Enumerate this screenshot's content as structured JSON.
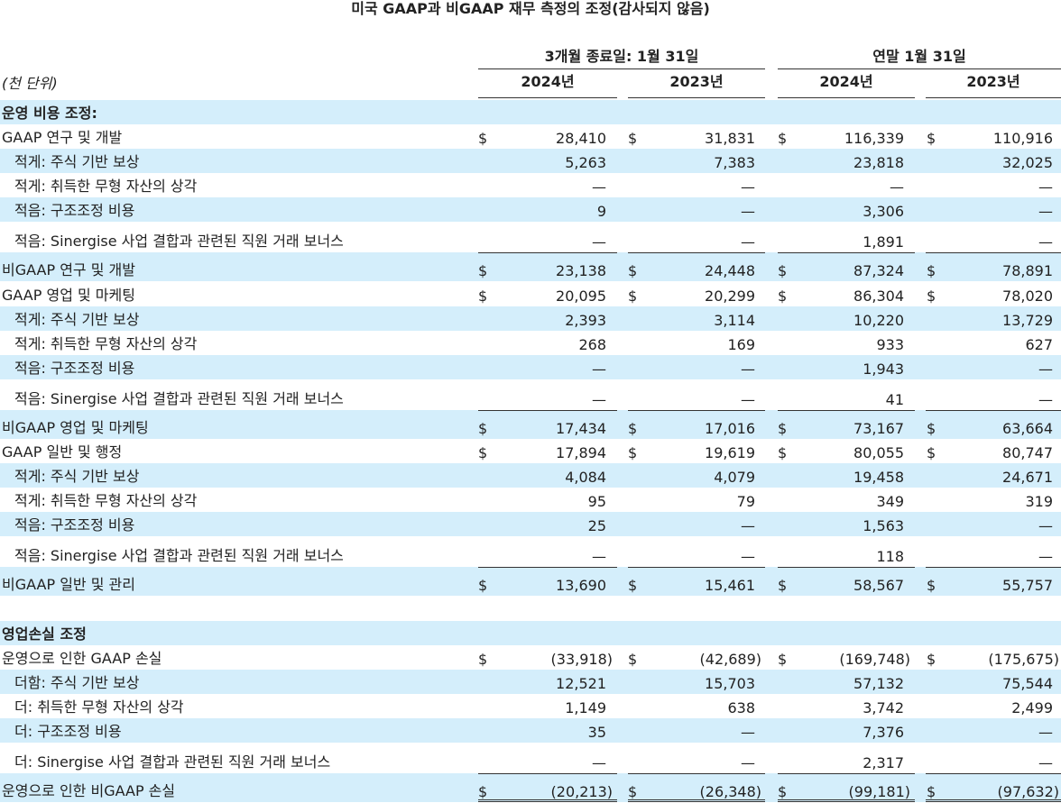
{
  "title": "미국 GAAP과 비GAAP 재무 측정의 조정(감사되지 않음)",
  "units": "(천 단위)",
  "headers": {
    "group1": "3개월 종료일: 1월 31일",
    "group2": "연말 1월 31일",
    "years": [
      "2024년",
      "2023년",
      "2024년",
      "2023년"
    ]
  },
  "rows": [
    {
      "label": "운영 비용 조정:",
      "values": [
        "",
        "",
        "",
        ""
      ],
      "dollar": false,
      "bold": true
    },
    {
      "label": "GAAP 연구 및 개발",
      "values": [
        "28,410",
        "31,831",
        "116,339",
        "110,916"
      ],
      "dollar": true
    },
    {
      "label": "적게: 주식 기반 보상",
      "values": [
        "5,263",
        "7,383",
        "23,818",
        "32,025"
      ],
      "indent": true
    },
    {
      "label": "적게: 취득한 무형 자산의 상각",
      "values": [
        "—",
        "—",
        "—",
        "—"
      ],
      "indent": true
    },
    {
      "label": "적음: 구조조정 비용",
      "values": [
        "9",
        "—",
        "3,306",
        "—"
      ],
      "indent": true
    },
    {
      "label": "적음: Sinergise 사업 결합과 관련된 직원 거래 보너스",
      "values": [
        "—",
        "—",
        "1,891",
        "—"
      ],
      "indent": true
    },
    {
      "label": "비GAAP 연구 및 개발",
      "values": [
        "23,138",
        "24,448",
        "87,324",
        "78,891"
      ],
      "dollar": true,
      "subtotal": true
    },
    {
      "label": "GAAP 영업 및 마케팅",
      "values": [
        "20,095",
        "20,299",
        "86,304",
        "78,020"
      ],
      "dollar": true
    },
    {
      "label": "적게: 주식 기반 보상",
      "values": [
        "2,393",
        "3,114",
        "10,220",
        "13,729"
      ],
      "indent": true
    },
    {
      "label": "적게: 취득한 무형 자산의 상각",
      "values": [
        "268",
        "169",
        "933",
        "627"
      ],
      "indent": true
    },
    {
      "label": "적음: 구조조정 비용",
      "values": [
        "—",
        "—",
        "1,943",
        "—"
      ],
      "indent": true
    },
    {
      "label": "적음: Sinergise 사업 결합과 관련된 직원 거래 보너스",
      "values": [
        "—",
        "—",
        "41",
        "—"
      ],
      "indent": true
    },
    {
      "label": "비GAAP 영업 및 마케팅",
      "values": [
        "17,434",
        "17,016",
        "73,167",
        "63,664"
      ],
      "dollar": true,
      "subtotal": true
    },
    {
      "label": "GAAP 일반 및 행정",
      "values": [
        "17,894",
        "19,619",
        "80,055",
        "80,747"
      ],
      "dollar": true
    },
    {
      "label": "적게: 주식 기반 보상",
      "values": [
        "4,084",
        "4,079",
        "19,458",
        "24,671"
      ],
      "indent": true
    },
    {
      "label": "적게: 취득한 무형 자산의 상각",
      "values": [
        "95",
        "79",
        "349",
        "319"
      ],
      "indent": true
    },
    {
      "label": "적음: 구조조정 비용",
      "values": [
        "25",
        "—",
        "1,563",
        "—"
      ],
      "indent": true
    },
    {
      "label": "적음: Sinergise 사업 결합과 관련된 직원 거래 보너스",
      "values": [
        "—",
        "—",
        "118",
        "—"
      ],
      "indent": true
    },
    {
      "label": "비GAAP 일반 및 관리",
      "values": [
        "13,690",
        "15,461",
        "58,567",
        "55,757"
      ],
      "dollar": true,
      "subtotal": true
    },
    {
      "label": "",
      "values": [
        "",
        "",
        "",
        ""
      ],
      "spacer": true
    },
    {
      "label": "영업손실 조정",
      "values": [
        "",
        "",
        "",
        ""
      ],
      "bold": true
    },
    {
      "label": "운영으로 인한 GAAP 손실",
      "values": [
        "(33,918)",
        "(42,689)",
        "(169,748)",
        "(175,675)"
      ],
      "dollar": true
    },
    {
      "label": "더함: 주식 기반 보상",
      "values": [
        "12,521",
        "15,703",
        "57,132",
        "75,544"
      ],
      "indent": true
    },
    {
      "label": "더: 취득한 무형 자산의 상각",
      "values": [
        "1,149",
        "638",
        "3,742",
        "2,499"
      ],
      "indent": true
    },
    {
      "label": "더: 구조조정 비용",
      "values": [
        "35",
        "—",
        "7,376",
        "—"
      ],
      "indent": true
    },
    {
      "label": "더: Sinergise 사업 결합과 관련된 직원 거래 보너스",
      "values": [
        "—",
        "—",
        "2,317",
        "—"
      ],
      "indent": true
    },
    {
      "label": "운영으로 인한 비GAAP 손실",
      "values": [
        "(20,213)",
        "(26,348)",
        "(99,181)",
        "(97,632)"
      ],
      "dollar": true,
      "subtotal": true,
      "final": true
    }
  ],
  "dollar_sign": "$",
  "colors": {
    "shade": "#d4eefb",
    "rule": "#333333"
  }
}
